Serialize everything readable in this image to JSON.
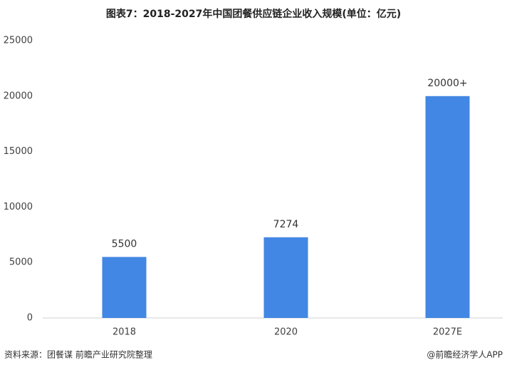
{
  "chart_data": {
    "type": "bar",
    "title": "图表7：2018-2027年中国团餐供应链企业收入规模(单位：亿元)",
    "categories": [
      "2018",
      "2020",
      "2027E"
    ],
    "values": [
      5500,
      7274,
      20000
    ],
    "value_labels": [
      "5500",
      "7274",
      "20000+"
    ],
    "color": "#4287e3",
    "ylim": [
      0,
      25000
    ],
    "yticks": [
      0,
      5000,
      10000,
      15000,
      20000,
      25000
    ],
    "grid": false
  },
  "footer": {
    "source": "资料来源：团餐谋 前瞻产业研究院整理",
    "credit": "@前瞻经济学人APP"
  }
}
